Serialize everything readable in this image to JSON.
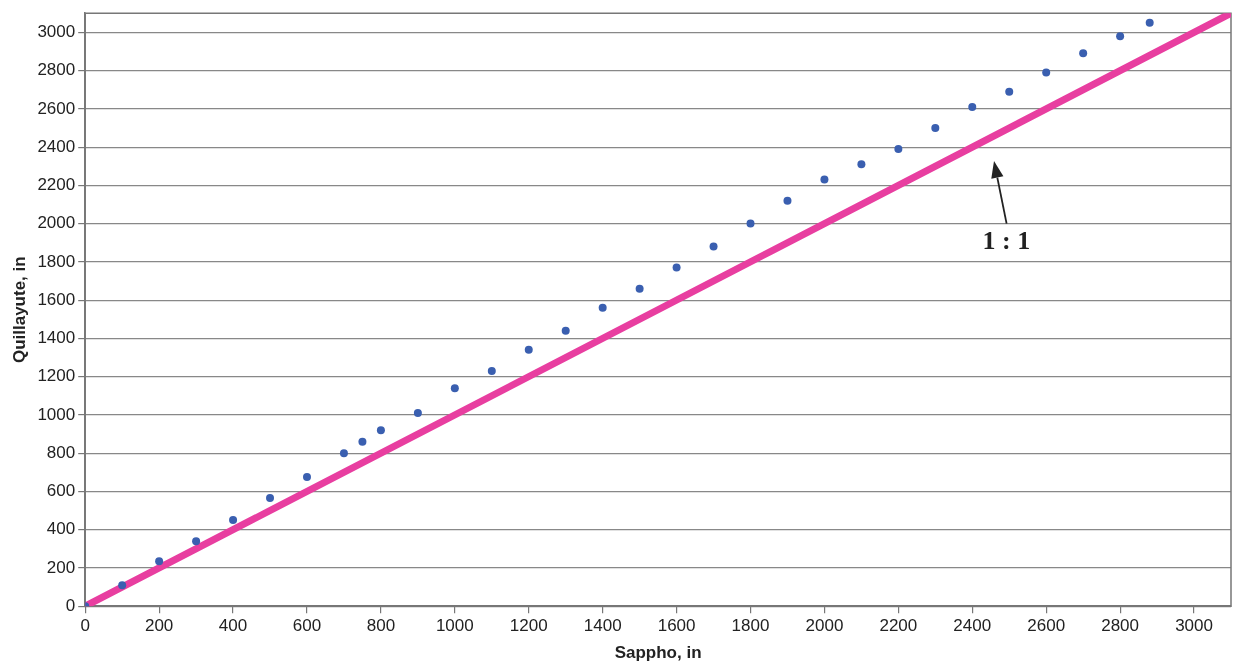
{
  "chart_data": {
    "type": "scatter",
    "xlabel": "Sappho, in",
    "ylabel": "Quillayute, in",
    "xlim": [
      0,
      3100
    ],
    "ylim": [
      0,
      3100
    ],
    "xticks": [
      0,
      200,
      400,
      600,
      800,
      1000,
      1200,
      1400,
      1600,
      1800,
      2000,
      2200,
      2400,
      2600,
      2800,
      3000
    ],
    "yticks": [
      0,
      200,
      400,
      600,
      800,
      1000,
      1200,
      1400,
      1600,
      1800,
      2000,
      2200,
      2400,
      2600,
      2800,
      3000
    ],
    "grid": "y",
    "legend": false,
    "marker": "circle",
    "series": [
      {
        "color": "#3a5fb0",
        "x": [
          0,
          100,
          200,
          300,
          400,
          500,
          600,
          700,
          750,
          800,
          900,
          1000,
          1100,
          1200,
          1300,
          1400,
          1500,
          1600,
          1700,
          1800,
          1900,
          2000,
          2100,
          2200,
          2300,
          2400,
          2500,
          2600,
          2700,
          2800,
          2880
        ],
        "values": [
          0,
          110,
          235,
          340,
          450,
          565,
          675,
          800,
          860,
          920,
          1010,
          1140,
          1230,
          1340,
          1440,
          1560,
          1660,
          1770,
          1880,
          2000,
          2120,
          2230,
          2310,
          2390,
          2500,
          2610,
          2690,
          2790,
          2890,
          2980,
          3050
        ]
      },
      {
        "type": "line",
        "color": "#e83ea0",
        "marker": "none",
        "x": [
          0,
          3100
        ],
        "values": [
          0,
          3100
        ]
      }
    ],
    "annotations": [
      "1 : 1"
    ]
  }
}
